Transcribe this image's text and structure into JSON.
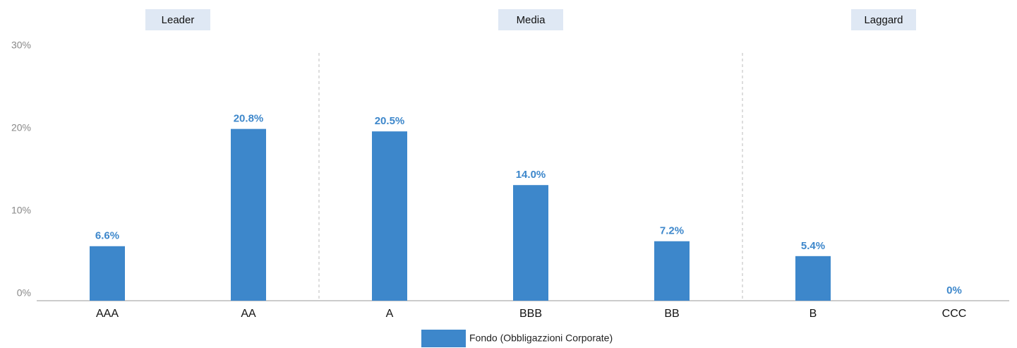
{
  "chart_data": {
    "type": "bar",
    "categories": [
      "AAA",
      "AA",
      "A",
      "BBB",
      "BB",
      "B",
      "CCC"
    ],
    "series": [
      {
        "name": "Fondo (Obbligazzioni Corporate)",
        "color": "#3d87cb",
        "values": [
          6.6,
          20.8,
          20.5,
          14.0,
          7.2,
          5.4,
          0
        ],
        "value_labels": [
          "6.6%",
          "20.8%",
          "20.5%",
          "14.0%",
          "7.2%",
          "5.4%",
          "0%"
        ]
      }
    ],
    "groups": [
      {
        "name": "Leader",
        "members": [
          "AAA",
          "AA"
        ]
      },
      {
        "name": "Media",
        "members": [
          "A",
          "BBB",
          "BB"
        ]
      },
      {
        "name": "Laggard",
        "members": [
          "B",
          "CCC"
        ]
      }
    ],
    "ylim": [
      0,
      30
    ],
    "yticks": [
      {
        "value": 0,
        "label": "0%"
      },
      {
        "value": 10,
        "label": "10%"
      },
      {
        "value": 20,
        "label": "20%"
      },
      {
        "value": 30,
        "label": "30%"
      }
    ],
    "legend": "bottom"
  }
}
